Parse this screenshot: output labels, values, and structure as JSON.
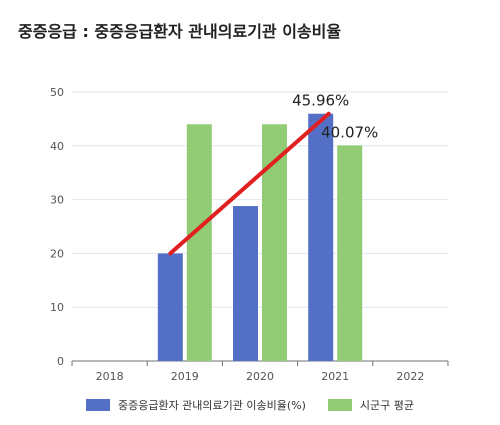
{
  "title": "중증응급 : 중증응급환자 관내의료기관 이송비율",
  "chart_data": {
    "type": "bar",
    "categories": [
      "2018",
      "2019",
      "2020",
      "2021",
      "2022"
    ],
    "series": [
      {
        "name": "중증응급환자 관내의료기관 이송비율(%)",
        "color": "#5470c6",
        "values": [
          null,
          20,
          28.8,
          45.96,
          null
        ]
      },
      {
        "name": "시군구 평균",
        "color": "#91cc75",
        "values": [
          null,
          44,
          44,
          40.07,
          null
        ]
      }
    ],
    "yticks": [
      0,
      10,
      20,
      30,
      40,
      50
    ],
    "ylim": [
      0,
      50
    ],
    "grid": true,
    "legend_position": "bottom",
    "data_labels": [
      {
        "text": "45.96%",
        "series": 0,
        "category": "2021"
      },
      {
        "text": "40.07%",
        "series": 1,
        "category": "2021"
      }
    ],
    "trend_line": {
      "color": "#e02020",
      "from": {
        "category": "2019",
        "value": 20
      },
      "to": {
        "category": "2021",
        "value": 45.96
      }
    }
  }
}
